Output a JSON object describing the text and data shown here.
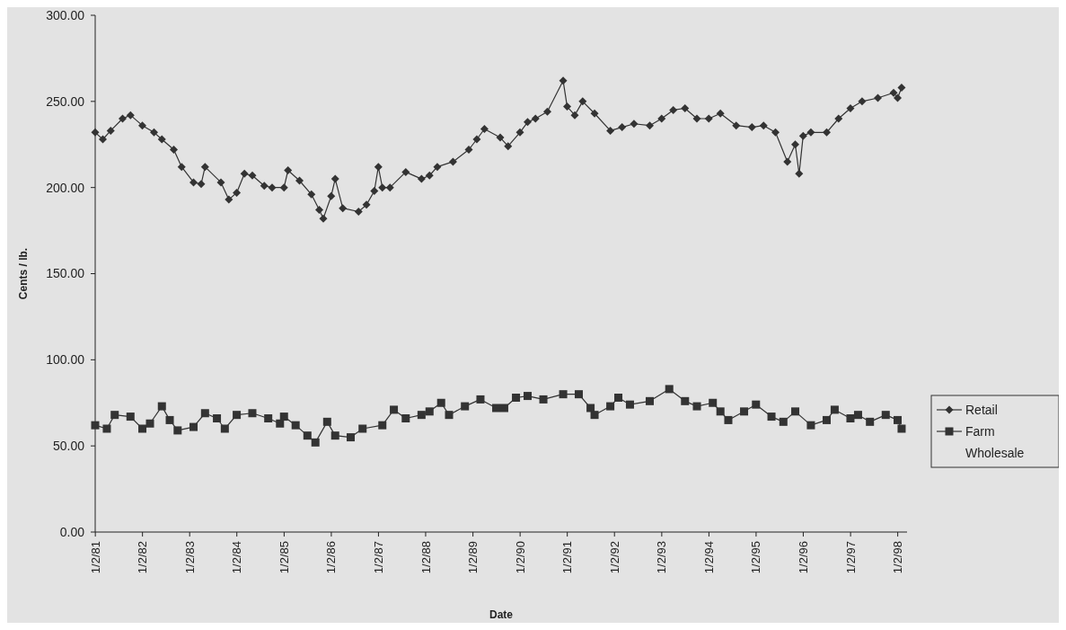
{
  "chart_data": {
    "type": "line",
    "xlabel": "Date",
    "ylabel": "Cents / lb.",
    "xlim": [
      "1981-01-01",
      "1998-03-15"
    ],
    "xticks": [
      {
        "value": "1981-01-02",
        "label": "1/2/81"
      },
      {
        "value": "1982-01-02",
        "label": "1/2/82"
      },
      {
        "value": "1983-01-02",
        "label": "1/2/83"
      },
      {
        "value": "1984-01-02",
        "label": "1/2/84"
      },
      {
        "value": "1985-01-02",
        "label": "1/2/85"
      },
      {
        "value": "1986-01-02",
        "label": "1/2/86"
      },
      {
        "value": "1987-01-02",
        "label": "1/2/87"
      },
      {
        "value": "1988-01-02",
        "label": "1/2/88"
      },
      {
        "value": "1989-01-02",
        "label": "1/2/89"
      },
      {
        "value": "1990-01-02",
        "label": "1/2/90"
      },
      {
        "value": "1991-01-02",
        "label": "1/2/91"
      },
      {
        "value": "1992-01-02",
        "label": "1/2/92"
      },
      {
        "value": "1993-01-02",
        "label": "1/2/93"
      },
      {
        "value": "1994-01-02",
        "label": "1/2/94"
      },
      {
        "value": "1995-01-02",
        "label": "1/2/95"
      },
      {
        "value": "1996-01-02",
        "label": "1/2/96"
      },
      {
        "value": "1997-01-02",
        "label": "1/2/97"
      },
      {
        "value": "1998-01-02",
        "label": "1/2/98"
      }
    ],
    "ylim": [
      0,
      300
    ],
    "yticks": [
      {
        "value": 0,
        "label": "0.00"
      },
      {
        "value": 50,
        "label": "50.00"
      },
      {
        "value": 100,
        "label": "100.00"
      },
      {
        "value": 150,
        "label": "150.00"
      },
      {
        "value": 200,
        "label": "200.00"
      },
      {
        "value": 250,
        "label": "250.00"
      },
      {
        "value": 300,
        "label": "300.00"
      }
    ],
    "grid": false,
    "legend": "right",
    "line_style": "solid",
    "series": [
      {
        "name": "Retail",
        "color": "#333333",
        "marker": "diamond",
        "x": [
          "1981-01",
          "1981-03",
          "1981-05",
          "1981-08",
          "1981-10",
          "1982-01",
          "1982-04",
          "1982-06",
          "1982-09",
          "1982-11",
          "1983-02",
          "1983-04",
          "1983-05",
          "1983-09",
          "1983-11",
          "1984-01",
          "1984-03",
          "1984-05",
          "1984-08",
          "1984-10",
          "1985-01",
          "1985-02",
          "1985-05",
          "1985-08",
          "1985-10",
          "1985-11",
          "1986-01",
          "1986-02",
          "1986-04",
          "1986-08",
          "1986-10",
          "1986-12",
          "1987-01",
          "1987-02",
          "1987-04",
          "1987-08",
          "1987-12",
          "1988-02",
          "1988-04",
          "1988-08",
          "1988-12",
          "1989-02",
          "1989-04",
          "1989-08",
          "1989-10",
          "1990-01",
          "1990-03",
          "1990-05",
          "1990-08",
          "1990-12",
          "1991-01",
          "1991-03",
          "1991-05",
          "1991-08",
          "1991-12",
          "1992-03",
          "1992-06",
          "1992-10",
          "1993-01",
          "1993-04",
          "1993-07",
          "1993-10",
          "1994-01",
          "1994-04",
          "1994-08",
          "1994-12",
          "1995-03",
          "1995-06",
          "1995-09",
          "1995-11",
          "1995-12",
          "1996-01",
          "1996-03",
          "1996-07",
          "1996-10",
          "1997-01",
          "1997-04",
          "1997-08",
          "1997-12",
          "1998-01",
          "1998-02"
        ],
        "values": [
          232,
          228,
          233,
          240,
          242,
          236,
          232,
          228,
          222,
          212,
          203,
          202,
          212,
          203,
          193,
          197,
          208,
          207,
          201,
          200,
          200,
          210,
          204,
          196,
          187,
          182,
          195,
          205,
          188,
          186,
          190,
          198,
          212,
          200,
          200,
          209,
          205,
          207,
          212,
          215,
          222,
          228,
          234,
          229,
          224,
          232,
          238,
          240,
          244,
          262,
          247,
          242,
          250,
          243,
          233,
          235,
          237,
          236,
          240,
          245,
          246,
          240,
          240,
          243,
          236,
          235,
          236,
          232,
          215,
          225,
          208,
          230,
          232,
          232,
          240,
          246,
          250,
          252,
          255,
          252,
          258
        ]
      },
      {
        "name": "Farm",
        "color": "#333333",
        "marker": "square",
        "x": [
          "1981-01",
          "1981-04",
          "1981-06",
          "1981-10",
          "1982-01",
          "1982-03",
          "1982-06",
          "1982-08",
          "1982-10",
          "1983-02",
          "1983-05",
          "1983-08",
          "1983-10",
          "1984-01",
          "1984-05",
          "1984-09",
          "1984-12",
          "1985-01",
          "1985-04",
          "1985-07",
          "1985-09",
          "1985-12",
          "1986-02",
          "1986-06",
          "1986-09",
          "1987-02",
          "1987-05",
          "1987-08",
          "1987-12",
          "1988-02",
          "1988-05",
          "1988-07",
          "1988-11",
          "1989-03",
          "1989-07",
          "1989-09",
          "1989-12",
          "1990-03",
          "1990-07",
          "1990-12",
          "1991-04",
          "1991-07",
          "1991-08",
          "1991-12",
          "1992-02",
          "1992-05",
          "1992-10",
          "1993-03",
          "1993-07",
          "1993-10",
          "1994-02",
          "1994-04",
          "1994-06",
          "1994-10",
          "1995-01",
          "1995-05",
          "1995-08",
          "1995-11",
          "1996-03",
          "1996-07",
          "1996-09",
          "1997-01",
          "1997-03",
          "1997-06",
          "1997-10",
          "1998-01",
          "1998-02"
        ],
        "values": [
          62,
          60,
          68,
          67,
          60,
          63,
          73,
          65,
          59,
          61,
          69,
          66,
          60,
          68,
          69,
          66,
          63,
          67,
          62,
          56,
          52,
          64,
          56,
          55,
          60,
          62,
          71,
          66,
          68,
          70,
          75,
          68,
          73,
          77,
          72,
          72,
          78,
          79,
          77,
          80,
          80,
          72,
          68,
          73,
          78,
          74,
          76,
          83,
          76,
          73,
          75,
          70,
          65,
          70,
          74,
          67,
          64,
          70,
          62,
          65,
          71,
          66,
          68,
          64,
          68,
          65,
          60
        ]
      },
      {
        "name": "Wholesale"
      }
    ]
  }
}
